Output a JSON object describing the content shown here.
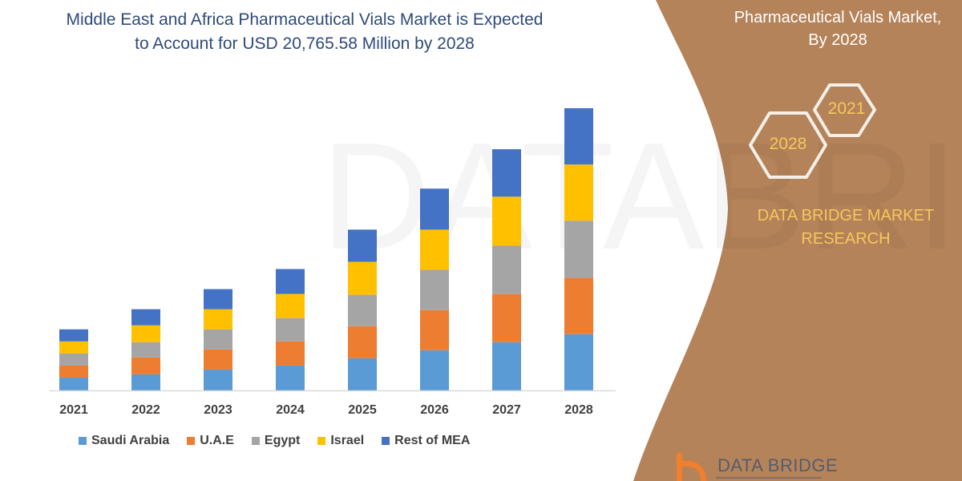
{
  "title": "Middle East and Africa Pharmaceutical Vials Market is Expected to Account for USD 20,765.58 Million by 2028",
  "title_lines": [
    "Middle East and Africa Pharmaceutical Vials Market is Expected",
    "to Account for USD 20,765.58 Million by 2028"
  ],
  "side_panel": {
    "title_lines": [
      "Pharmaceutical Vials Market,",
      "By 2028"
    ],
    "hex_labels": [
      "2021",
      "2028"
    ],
    "brand_lines": [
      "DATA BRIDGE MARKET",
      "RESEARCH"
    ],
    "logo_text": "DATA BRIDGE",
    "panel_color": "#b5835a",
    "accent_color": "#f5c85a"
  },
  "chart_data": {
    "type": "bar",
    "stacked": true,
    "categories": [
      "2021",
      "2022",
      "2023",
      "2024",
      "2025",
      "2026",
      "2027",
      "2028"
    ],
    "series": [
      {
        "name": "Saudi Arabia",
        "color": "#5b9bd5",
        "values": [
          16,
          20,
          26,
          31,
          40,
          50,
          60,
          70
        ]
      },
      {
        "name": "U.A.E",
        "color": "#ed7d31",
        "values": [
          15,
          21,
          25,
          30,
          40,
          50,
          60,
          70
        ]
      },
      {
        "name": "Egypt",
        "color": "#a5a5a5",
        "values": [
          15,
          19,
          25,
          29,
          39,
          50,
          60,
          71
        ]
      },
      {
        "name": "Israel",
        "color": "#ffc000",
        "values": [
          15,
          21,
          25,
          30,
          41,
          50,
          61,
          70
        ]
      },
      {
        "name": "Rest of MEA",
        "color": "#4472c4",
        "values": [
          15,
          20,
          25,
          31,
          40,
          51,
          59,
          70
        ]
      }
    ],
    "y_axis_shown": false,
    "grid": false,
    "legend_position": "bottom"
  }
}
